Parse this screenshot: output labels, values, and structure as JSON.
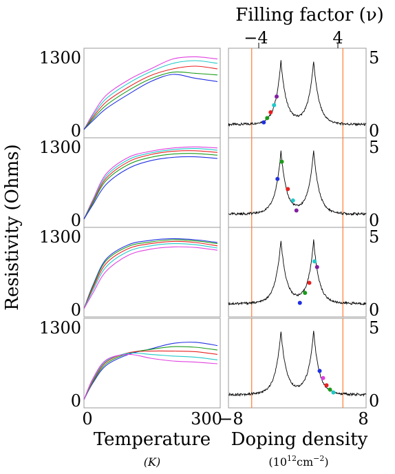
{
  "chart_data": [
    {
      "type": "line",
      "panel": "temperature-panel-1",
      "xlim": [
        0,
        300
      ],
      "ylim": [
        0,
        1300
      ],
      "series": [
        {
          "color": "#e040e0",
          "x": [
            0,
            20,
            50,
            100,
            150,
            200,
            250,
            300
          ],
          "y": [
            0,
            280,
            620,
            900,
            1100,
            1280,
            1320,
            1280
          ]
        },
        {
          "color": "#20c8c8",
          "x": [
            0,
            20,
            50,
            100,
            150,
            200,
            250,
            300
          ],
          "y": [
            0,
            250,
            560,
            840,
            1050,
            1200,
            1250,
            1200
          ]
        },
        {
          "color": "#e82020",
          "x": [
            0,
            20,
            50,
            100,
            150,
            200,
            250,
            300
          ],
          "y": [
            0,
            220,
            500,
            770,
            980,
            1100,
            1150,
            1100
          ]
        },
        {
          "color": "#1a9a1a",
          "x": [
            0,
            20,
            50,
            100,
            150,
            200,
            250,
            300
          ],
          "y": [
            0,
            190,
            440,
            710,
            920,
            1040,
            1020,
            990
          ]
        },
        {
          "color": "#2030e0",
          "x": [
            0,
            20,
            50,
            100,
            150,
            200,
            250,
            300
          ],
          "y": [
            0,
            160,
            380,
            640,
            870,
            1000,
            930,
            870
          ]
        }
      ]
    },
    {
      "type": "line",
      "panel": "temperature-panel-2",
      "xlim": [
        0,
        300
      ],
      "ylim": [
        0,
        1300
      ],
      "series": [
        {
          "color": "#e040e0",
          "x": [
            0,
            20,
            50,
            100,
            150,
            200,
            250,
            300
          ],
          "y": [
            0,
            350,
            820,
            1120,
            1230,
            1290,
            1310,
            1290
          ]
        },
        {
          "color": "#20c8c8",
          "x": [
            0,
            20,
            50,
            100,
            150,
            200,
            250,
            300
          ],
          "y": [
            0,
            330,
            780,
            1080,
            1200,
            1260,
            1280,
            1250
          ]
        },
        {
          "color": "#e82020",
          "x": [
            0,
            20,
            50,
            100,
            150,
            200,
            250,
            300
          ],
          "y": [
            0,
            310,
            740,
            1040,
            1170,
            1230,
            1240,
            1210
          ]
        },
        {
          "color": "#1a9a1a",
          "x": [
            0,
            20,
            50,
            100,
            150,
            200,
            250,
            300
          ],
          "y": [
            0,
            290,
            700,
            990,
            1120,
            1180,
            1190,
            1160
          ]
        },
        {
          "color": "#2030e0",
          "x": [
            0,
            20,
            50,
            100,
            150,
            200,
            250,
            300
          ],
          "y": [
            0,
            260,
            630,
            920,
            1060,
            1120,
            1130,
            1100
          ]
        }
      ]
    },
    {
      "type": "line",
      "panel": "temperature-panel-3",
      "xlim": [
        0,
        300
      ],
      "ylim": [
        0,
        1300
      ],
      "series": [
        {
          "color": "#2030e0",
          "x": [
            0,
            20,
            50,
            100,
            150,
            200,
            250,
            300
          ],
          "y": [
            0,
            420,
            900,
            1160,
            1240,
            1270,
            1250,
            1200
          ]
        },
        {
          "color": "#1a9a1a",
          "x": [
            0,
            20,
            50,
            100,
            150,
            200,
            250,
            300
          ],
          "y": [
            0,
            400,
            870,
            1130,
            1210,
            1250,
            1230,
            1180
          ]
        },
        {
          "color": "#e82020",
          "x": [
            0,
            20,
            50,
            100,
            150,
            200,
            250,
            300
          ],
          "y": [
            0,
            370,
            820,
            1090,
            1180,
            1220,
            1200,
            1140
          ]
        },
        {
          "color": "#20c8c8",
          "x": [
            0,
            20,
            50,
            100,
            150,
            200,
            250,
            300
          ],
          "y": [
            0,
            330,
            760,
            1040,
            1140,
            1180,
            1160,
            1100
          ]
        },
        {
          "color": "#e040e0",
          "x": [
            0,
            20,
            50,
            100,
            150,
            200,
            250,
            300
          ],
          "y": [
            0,
            280,
            680,
            970,
            1080,
            1120,
            1110,
            1060
          ]
        }
      ]
    },
    {
      "type": "line",
      "panel": "temperature-panel-4",
      "xlim": [
        0,
        300
      ],
      "ylim": [
        0,
        1300
      ],
      "series": [
        {
          "color": "#2030e0",
          "x": [
            0,
            20,
            50,
            100,
            150,
            200,
            250,
            300
          ],
          "y": [
            0,
            300,
            620,
            820,
            920,
            1020,
            1040,
            980
          ]
        },
        {
          "color": "#1a9a1a",
          "x": [
            0,
            20,
            50,
            100,
            150,
            200,
            250,
            300
          ],
          "y": [
            0,
            320,
            650,
            840,
            910,
            960,
            950,
            900
          ]
        },
        {
          "color": "#e82020",
          "x": [
            0,
            20,
            50,
            100,
            150,
            200,
            250,
            300
          ],
          "y": [
            0,
            340,
            680,
            850,
            880,
            880,
            870,
            820
          ]
        },
        {
          "color": "#20c8c8",
          "x": [
            0,
            20,
            50,
            100,
            150,
            200,
            250,
            300
          ],
          "y": [
            0,
            360,
            700,
            840,
            820,
            790,
            770,
            720
          ]
        },
        {
          "color": "#e040e0",
          "x": [
            0,
            20,
            50,
            100,
            150,
            200,
            250,
            300
          ],
          "y": [
            0,
            380,
            720,
            820,
            750,
            700,
            680,
            650
          ]
        }
      ]
    },
    {
      "type": "line",
      "panel": "doping-panel-1",
      "xlim": [
        -8,
        8
      ],
      "ylim": [
        0,
        5
      ],
      "marker_x": [
        -5.3,
        5.3
      ],
      "points": [
        {
          "color": "#2030e0",
          "x": -3.9,
          "y": 0.5
        },
        {
          "color": "#1a9a1a",
          "x": -3.5,
          "y": 0.8
        },
        {
          "color": "#e82020",
          "x": -3.1,
          "y": 1.2
        },
        {
          "color": "#20c8c8",
          "x": -2.7,
          "y": 1.7
        },
        {
          "color": "#8020a0",
          "x": -2.4,
          "y": 2.3
        }
      ]
    },
    {
      "type": "line",
      "panel": "doping-panel-2",
      "xlim": [
        -8,
        8
      ],
      "ylim": [
        0,
        5
      ],
      "marker_x": [
        -5.3,
        5.3
      ],
      "points": [
        {
          "color": "#1a9a1a",
          "x": -1.8,
          "y": 4.0
        },
        {
          "color": "#2030e0",
          "x": -2.3,
          "y": 2.8
        },
        {
          "color": "#e82020",
          "x": -1.1,
          "y": 2.1
        },
        {
          "color": "#20c8c8",
          "x": -0.5,
          "y": 1.3
        },
        {
          "color": "#8020a0",
          "x": -0.1,
          "y": 0.6
        }
      ]
    },
    {
      "type": "line",
      "panel": "doping-panel-3",
      "xlim": [
        -8,
        8
      ],
      "ylim": [
        0,
        5
      ],
      "marker_x": [
        -5.3,
        5.3
      ],
      "points": [
        {
          "color": "#2030e0",
          "x": 0.3,
          "y": 0.4
        },
        {
          "color": "#1a9a1a",
          "x": 0.9,
          "y": 1.1
        },
        {
          "color": "#e82020",
          "x": 1.4,
          "y": 1.8
        },
        {
          "color": "#20c8c8",
          "x": 2.0,
          "y": 3.3
        },
        {
          "color": "#8020a0",
          "x": 2.3,
          "y": 2.9
        }
      ]
    },
    {
      "type": "line",
      "panel": "doping-panel-4",
      "xlim": [
        -8,
        8
      ],
      "ylim": [
        0,
        5
      ],
      "marker_x": [
        -5.3,
        5.3
      ],
      "points": [
        {
          "color": "#2030e0",
          "x": 2.6,
          "y": 2.0
        },
        {
          "color": "#e040e0",
          "x": 3.0,
          "y": 1.5
        },
        {
          "color": "#e82020",
          "x": 3.4,
          "y": 1.0
        },
        {
          "color": "#1a9a1a",
          "x": 3.8,
          "y": 0.7
        },
        {
          "color": "#20c8c8",
          "x": 4.2,
          "y": 0.5
        }
      ]
    }
  ],
  "labels": {
    "top_axis_title": "Filling factor (ν)",
    "top_tick_left": "−4",
    "top_tick_right": "4",
    "y_axis_title": "Resistivity (Ohms)",
    "left_x_title": "Temperature",
    "left_x_unit": "(K)",
    "right_x_title": "Doping density",
    "right_x_unit_base": "(10",
    "right_x_unit_exp1": "12",
    "right_x_unit_mid": "cm",
    "right_x_unit_exp2": "−2",
    "right_x_unit_close": ")",
    "left_y_ticks": [
      "1300",
      "0"
    ],
    "right_y_ticks": [
      "5",
      "0"
    ],
    "left_x_ticks": [
      "0",
      "300"
    ],
    "right_x_ticks": [
      "−8",
      "8"
    ]
  }
}
